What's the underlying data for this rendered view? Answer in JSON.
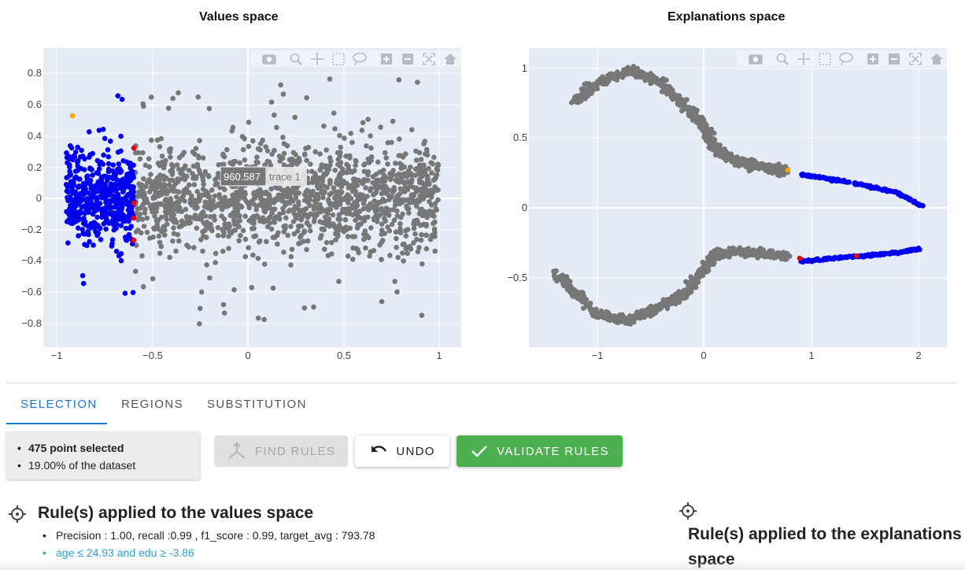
{
  "left_plot": {
    "title": "Values space",
    "x_ticks": [
      "−1",
      "−0.5",
      "0",
      "0.5",
      "1"
    ],
    "y_ticks": [
      "0.8",
      "0.6",
      "0.4",
      "0.2",
      "0",
      "−0.2",
      "−0.4",
      "−0.6",
      "−0.8"
    ],
    "hover_value": "960.587",
    "hover_trace": "trace 1"
  },
  "right_plot": {
    "title": "Explanations space",
    "x_ticks": [
      "−1",
      "0",
      "1",
      "2"
    ],
    "y_ticks": [
      "1",
      "0.5",
      "0",
      "−0.5"
    ]
  },
  "modebar": [
    "camera-icon",
    "zoom-icon",
    "pan-icon",
    "box-select-icon",
    "lasso-icon",
    "zoom-in-icon",
    "zoom-out-icon",
    "autoscale-icon",
    "home-icon"
  ],
  "colors": {
    "selected": "#0000ee",
    "unselected": "#777777",
    "red": "#ee0000",
    "orange": "#ffa500",
    "plot_bg": "#e5ecf6",
    "accent": "#1976d2",
    "validate": "#4caf50"
  },
  "tabs": [
    "SELECTION",
    "REGIONS",
    "SUBSTITUTION"
  ],
  "selection": {
    "line1": "475 point selected",
    "line2": "19.00% of the dataset"
  },
  "buttons": {
    "find_rules": "FIND RULES",
    "undo": "UNDO",
    "validate": "VALIDATE RULES"
  },
  "rules_values": {
    "title": "Rule(s) applied to the values space",
    "metrics": "Precision : 1.00, recall :0.99 , f1_score : 0.99, target_avg : 793.78",
    "rule": "age ≤ 24.93 and edu ≥ -3.86"
  },
  "rules_explanations": {
    "title_line1": "Rule(s) applied to the explanations",
    "title_line2": "space"
  }
}
